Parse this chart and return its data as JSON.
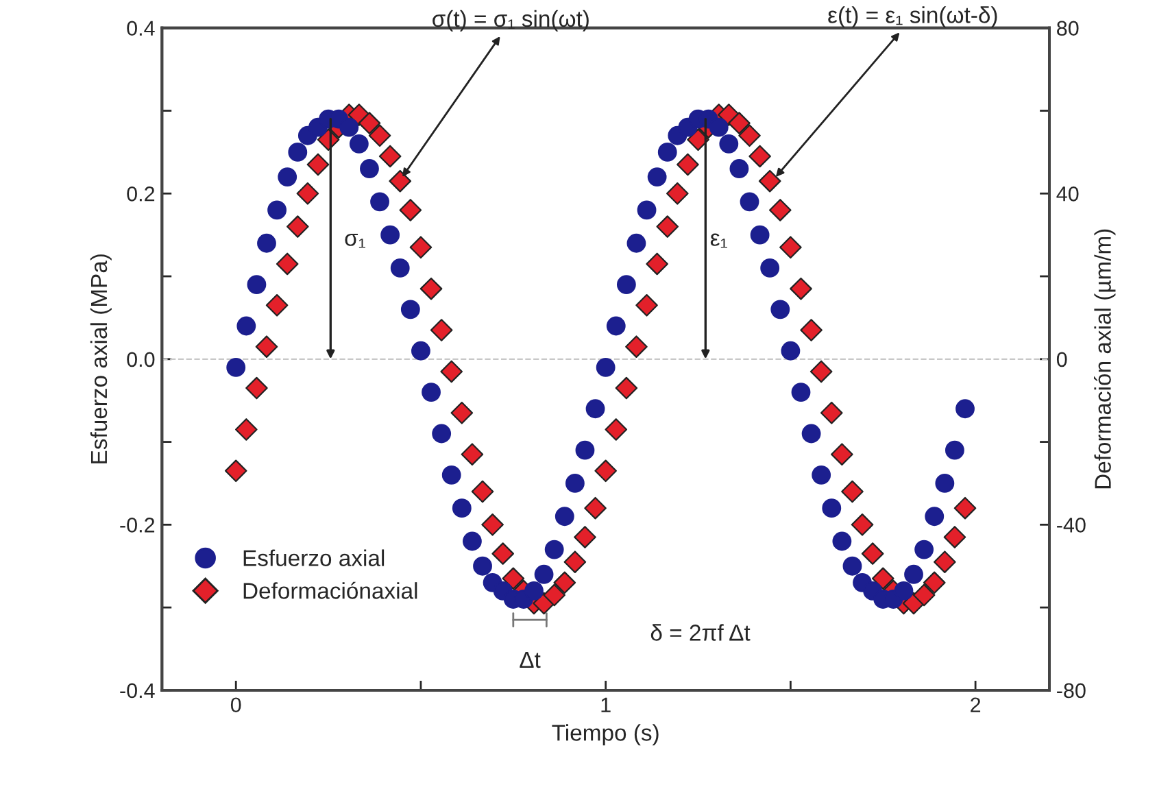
{
  "chart_data": {
    "type": "scatter",
    "xlabel": "Tiempo (s)",
    "ylabel": "Esfuerzo axial (MPa)",
    "y2label": "Deformación axial (µm/m)",
    "x": [
      0,
      0.028,
      0.056,
      0.083,
      0.111,
      0.139,
      0.167,
      0.194,
      0.222,
      0.25,
      0.278,
      0.306,
      0.333,
      0.361,
      0.389,
      0.417,
      0.444,
      0.472,
      0.5,
      0.528,
      0.556,
      0.583,
      0.611,
      0.639,
      0.667,
      0.694,
      0.722,
      0.75,
      0.778,
      0.806,
      0.833,
      0.861,
      0.889,
      0.917,
      0.944,
      0.972,
      1,
      1.028,
      1.056,
      1.083,
      1.111,
      1.139,
      1.167,
      1.194,
      1.222,
      1.25,
      1.278,
      1.306,
      1.333,
      1.361,
      1.389,
      1.417,
      1.444,
      1.472,
      1.5,
      1.528,
      1.556,
      1.583,
      1.611,
      1.639,
      1.667,
      1.694,
      1.722,
      1.75,
      1.778,
      1.806,
      1.833,
      1.861,
      1.889,
      1.917,
      1.944,
      1.972
    ],
    "series": [
      {
        "name": "Esfuerzo axial",
        "color": "#1c1f8f",
        "marker": "circle",
        "axis": "y",
        "values": [
          -0.01,
          0.04,
          0.09,
          0.14,
          0.18,
          0.22,
          0.25,
          0.27,
          0.28,
          0.29,
          0.29,
          0.28,
          0.26,
          0.23,
          0.19,
          0.15,
          0.11,
          0.06,
          0.01,
          -0.04,
          -0.09,
          -0.14,
          -0.18,
          -0.22,
          -0.25,
          -0.27,
          -0.28,
          -0.29,
          -0.29,
          -0.28,
          -0.26,
          -0.23,
          -0.19,
          -0.15,
          -0.11,
          -0.06,
          -0.01,
          0.04,
          0.09,
          0.14,
          0.18,
          0.22,
          0.25,
          0.27,
          0.28,
          0.29,
          0.29,
          0.28,
          0.26,
          0.23,
          0.19,
          0.15,
          0.11,
          0.06,
          0.01,
          -0.04,
          -0.09,
          -0.14,
          -0.18,
          -0.22,
          -0.25,
          -0.27,
          -0.28,
          -0.29,
          -0.29,
          -0.28,
          -0.26,
          -0.23,
          -0.19,
          -0.15,
          -0.11,
          -0.06
        ]
      },
      {
        "name": "Deformaciónaxial",
        "color": "#e3202a",
        "marker": "diamond",
        "axis": "y2",
        "values": [
          -27,
          -17,
          -7,
          3,
          13,
          23,
          32,
          40,
          47,
          53,
          56,
          59,
          59,
          57,
          54,
          49,
          43,
          36,
          27,
          17,
          7,
          -3,
          -13,
          -23,
          -32,
          -40,
          -47,
          -53,
          -56,
          -59,
          -59,
          -57,
          -54,
          -49,
          -43,
          -36,
          -27,
          -17,
          -7,
          3,
          13,
          23,
          32,
          40,
          47,
          53,
          56,
          59,
          59,
          57,
          54,
          49,
          43,
          36,
          27,
          17,
          7,
          -3,
          -13,
          -23,
          -32,
          -40,
          -47,
          -53,
          -56,
          -59,
          -59,
          -57,
          -54,
          -49,
          -43,
          -36
        ]
      }
    ],
    "xlim": [
      -0.2,
      2.2
    ],
    "xticks": [
      0,
      {
        "value": 0.5,
        "label": null
      },
      1,
      {
        "value": 1.5,
        "label": null
      },
      2
    ],
    "ylim": [
      -0.4,
      0.4
    ],
    "yticks": [
      -0.4,
      {
        "value": -0.3,
        "label": null
      },
      -0.2,
      {
        "value": -0.1,
        "label": null
      },
      {
        "value": 0,
        "label": "0.0"
      },
      {
        "value": 0.1,
        "label": null
      },
      0.2,
      {
        "value": 0.3,
        "label": null
      },
      0.4
    ],
    "y2lim": [
      -80,
      80
    ],
    "y2ticks": [
      -80,
      {
        "value": -60,
        "label": null
      },
      -40,
      {
        "value": -20,
        "label": null
      },
      0,
      {
        "value": 20,
        "label": null
      },
      40,
      {
        "value": 60,
        "label": null
      },
      80
    ],
    "ref_lines": [
      {
        "axis": "y",
        "value": 0,
        "label": null,
        "color": "#c8c8c8",
        "line_style": "dashed"
      }
    ],
    "annotations": [
      {
        "text": "σ(t) = σ₁ sin(ωt)",
        "x": 0.45,
        "y": 0.22
      },
      {
        "text": "ε(t) = ε₁ sin(ωt-δ)",
        "x": 1.46,
        "y": 0.22
      },
      "σ₁",
      "ε₁",
      {
        "text": "Δt",
        "x": 0.795,
        "y": -0.315
      },
      "δ = 2πf Δt"
    ],
    "legend": "bottom left",
    "grid": false
  }
}
